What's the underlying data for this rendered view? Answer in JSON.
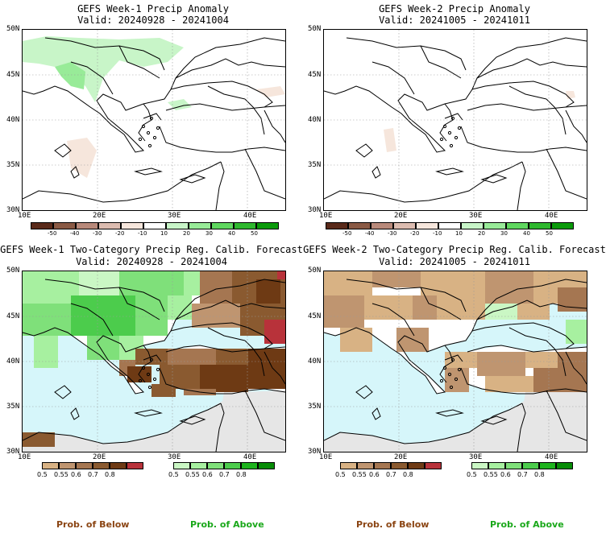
{
  "panels": [
    {
      "title1": "GEFS Week-1 Precip Anomaly",
      "title2": "Valid: 20240928 - 20241004"
    },
    {
      "title1": "GEFS Week-2 Precip Anomaly",
      "title2": "Valid: 20241005 - 20241011"
    },
    {
      "title1": "GEFS Week-1 Two-Category Precip Reg. Calib. Forecast",
      "title2": "Valid: 20240928 - 20241004"
    },
    {
      "title1": "GEFS Week-2 Two-Category Precip Reg. Calib. Forecast",
      "title2": "Valid: 20241005 - 20241011"
    }
  ],
  "lat_labels": [
    "50N",
    "45N",
    "40N",
    "35N",
    "30N"
  ],
  "lon_labels": [
    "10E",
    "20E",
    "30E",
    "40E"
  ],
  "anomaly_colorbar": {
    "ticks": [
      "-50",
      "-40",
      "-30",
      "-20",
      "-10",
      "10",
      "20",
      "30",
      "40",
      "50"
    ],
    "colors": [
      "#5a2a1a",
      "#8a5a45",
      "#b8897a",
      "#dcbcb0",
      "#f6e6dc",
      "#ffffff",
      "#c8f5c8",
      "#98eb98",
      "#5fd75f",
      "#2eb82e",
      "#0a9a0a"
    ]
  },
  "below_colorbar": {
    "ticks": [
      "0.5",
      "0.55",
      "0.6",
      "0.7",
      "0.8"
    ],
    "colors": [
      "#d8b284",
      "#bf9570",
      "#a57651",
      "#8a5a30",
      "#6e3a14",
      "#b8323a"
    ]
  },
  "above_colorbar": {
    "ticks": [
      "0.5",
      "0.55",
      "0.6",
      "0.7",
      "0.8"
    ],
    "colors": [
      "#caf7c4",
      "#a7f0a0",
      "#7fe07a",
      "#4ccc4c",
      "#1eb41e",
      "#078c07"
    ]
  },
  "legend": {
    "below": "Prob. of Below",
    "above": "Prob. of Above",
    "below_color": "#8b4513",
    "above_color": "#1aa81a"
  },
  "colors": {
    "sea": "#d6f6fa",
    "land_gray": "#e6e6e6",
    "coast": "#000000"
  }
}
